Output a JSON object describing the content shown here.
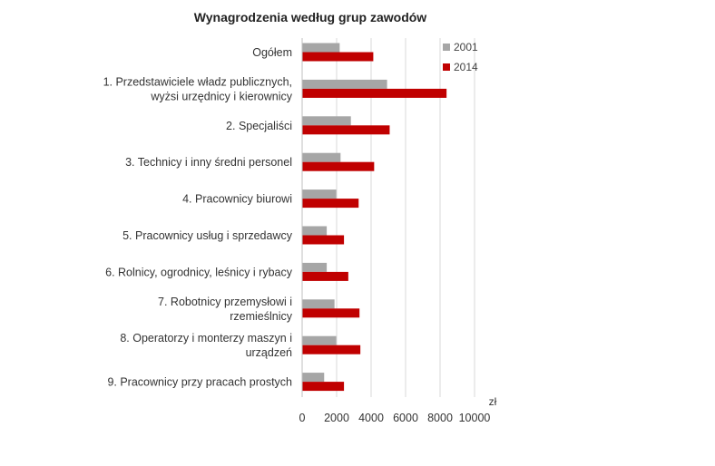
{
  "chart_data": {
    "type": "bar",
    "orientation": "horizontal",
    "title": "Wynagrodzenia według grup zawodów",
    "xlabel": "zł",
    "ylabel": "",
    "xlim": [
      0,
      10000
    ],
    "xticks": [
      0,
      2000,
      4000,
      6000,
      8000,
      10000
    ],
    "grid": "vertical",
    "legend_position": "top-right",
    "categories": [
      [
        "Ogółem"
      ],
      [
        "1. Przedstawiciele władz publicznych,",
        "wyżsi urzędnicy i kierownicy"
      ],
      [
        "2. Specjaliści"
      ],
      [
        "3. Technicy i inny średni personel"
      ],
      [
        "4. Pracownicy biurowi"
      ],
      [
        "5. Pracownicy usług i sprzedawcy"
      ],
      [
        "6. Rolnicy, ogrodnicy, leśnicy i rybacy"
      ],
      [
        "7. Robotnicy przemysłowi i",
        "rzemieślnicy"
      ],
      [
        "8. Operatorzy i monterzy maszyn i",
        "urządzeń"
      ],
      [
        "9. Pracownicy przy pracach prostych"
      ]
    ],
    "series": [
      {
        "name": "2001",
        "color": "#a6a6a6",
        "values": [
          2150,
          4900,
          2800,
          2200,
          1950,
          1400,
          1400,
          1850,
          1950,
          1250
        ]
      },
      {
        "name": "2014",
        "color": "#c00000",
        "values": [
          4100,
          8350,
          5050,
          4150,
          3250,
          2400,
          2650,
          3300,
          3350,
          2400
        ]
      }
    ]
  }
}
